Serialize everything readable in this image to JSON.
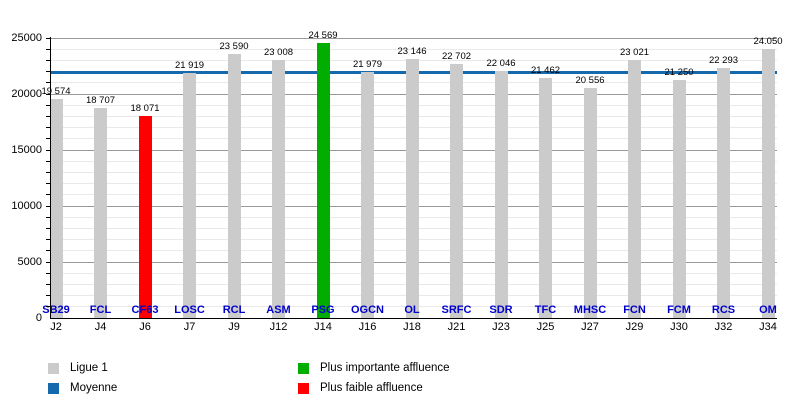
{
  "chart_data": {
    "type": "bar",
    "title": "",
    "xlabel": "",
    "ylabel": "",
    "ylim": [
      0,
      25000
    ],
    "y_tick_labels": [
      "0",
      "5000",
      "10000",
      "15000",
      "20000",
      "25000"
    ],
    "grid": {
      "minor_step": 1000,
      "major_step": 5000,
      "on": true
    },
    "bars": [
      {
        "team": "SB29",
        "journee": "J2",
        "value": 19574,
        "label": "19 574"
      },
      {
        "team": "FCL",
        "journee": "J4",
        "value": 18707,
        "label": "18 707"
      },
      {
        "team": "CF63",
        "journee": "J6",
        "value": 18071,
        "label": "18 071"
      },
      {
        "team": "LOSC",
        "journee": "J7",
        "value": 21919,
        "label": "21 919"
      },
      {
        "team": "RCL",
        "journee": "J9",
        "value": 23590,
        "label": "23 590"
      },
      {
        "team": "ASM",
        "journee": "J12",
        "value": 23008,
        "label": "23 008"
      },
      {
        "team": "PSG",
        "journee": "J14",
        "value": 24569,
        "label": "24 569"
      },
      {
        "team": "OGCN",
        "journee": "J16",
        "value": 21979,
        "label": "21 979"
      },
      {
        "team": "OL",
        "journee": "J18",
        "value": 23146,
        "label": "23 146"
      },
      {
        "team": "SRFC",
        "journee": "J21",
        "value": 22702,
        "label": "22 702"
      },
      {
        "team": "SDR",
        "journee": "J23",
        "value": 22046,
        "label": "22 046"
      },
      {
        "team": "TFC",
        "journee": "J25",
        "value": 21462,
        "label": "21 462"
      },
      {
        "team": "MHSC",
        "journee": "J27",
        "value": 20556,
        "label": "20 556"
      },
      {
        "team": "FCN",
        "journee": "J29",
        "value": 23021,
        "label": "23 021"
      },
      {
        "team": "FCM",
        "journee": "J30",
        "value": 21250,
        "label": "21 250"
      },
      {
        "team": "RCS",
        "journee": "J32",
        "value": 22293,
        "label": "22 293"
      },
      {
        "team": "OM",
        "journee": "J34",
        "value": 24050,
        "label": "24.050"
      }
    ],
    "max_index": 6,
    "min_index": 2,
    "average": {
      "value": 21879
    },
    "colors": {
      "bar": "#cbcbcb",
      "max": "#00ad00",
      "min": "#ff0000",
      "average_line": "#1569ad",
      "team_label": "#0000cc",
      "value_label": "#000000"
    },
    "legend": [
      {
        "label": "Ligue 1",
        "color": "#cbcbcb"
      },
      {
        "label": "Moyenne",
        "color": "#1569ad"
      },
      {
        "label": "Plus importante affluence",
        "color": "#00ad00"
      },
      {
        "label": "Plus faible affluence",
        "color": "#ff0000"
      }
    ]
  }
}
